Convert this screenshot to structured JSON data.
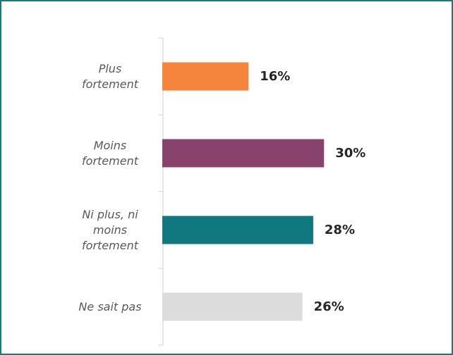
{
  "chart_data": {
    "type": "bar",
    "orientation": "horizontal",
    "categories": [
      "Plus fortement",
      "Moins fortement",
      "Ni plus, ni moins fortement",
      "Ne sait pas"
    ],
    "values": [
      16,
      30,
      28,
      26
    ],
    "value_labels": [
      "16%",
      "30%",
      "28%",
      "26%"
    ],
    "colors": [
      "#f5843c",
      "#87436b",
      "#12787f",
      "#dcdcdc"
    ]
  }
}
